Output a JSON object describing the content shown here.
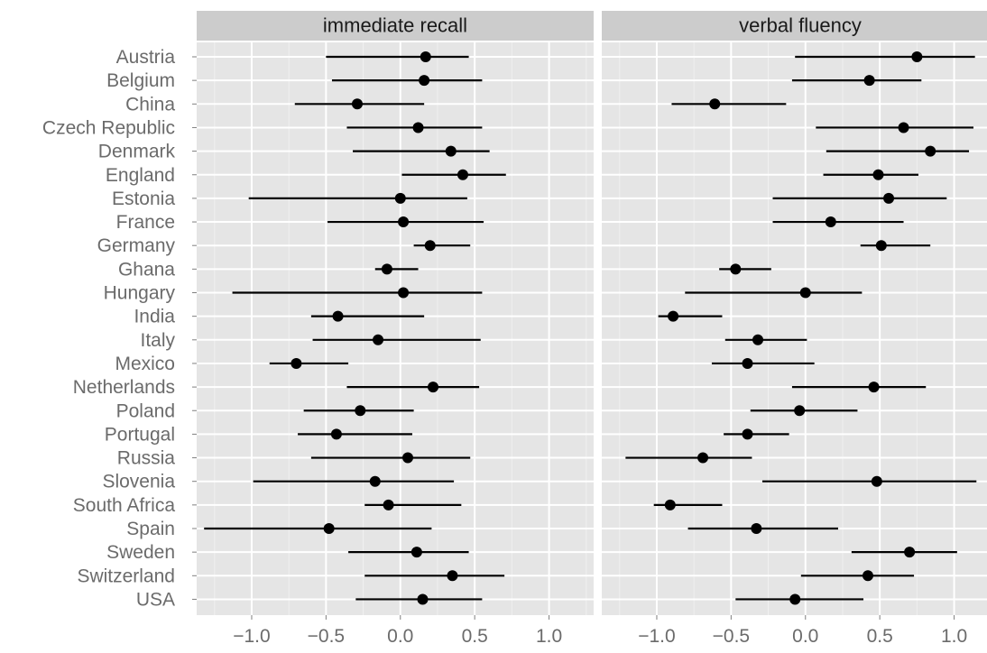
{
  "chart_data": {
    "type": "scatter",
    "subtype": "dot-and-interval (forest plot), faceted",
    "categories": [
      "Austria",
      "Belgium",
      "China",
      "Czech Republic",
      "Denmark",
      "England",
      "Estonia",
      "France",
      "Germany",
      "Ghana",
      "Hungary",
      "India",
      "Italy",
      "Mexico",
      "Netherlands",
      "Poland",
      "Portugal",
      "Russia",
      "Slovenia",
      "South Africa",
      "Spain",
      "Sweden",
      "Switzerland",
      "USA"
    ],
    "xlim": [
      -1.37,
      1.3
    ],
    "xticks": [
      -1.0,
      -0.5,
      0.0,
      0.5,
      1.0
    ],
    "xtick_labels": [
      "−1.0",
      "−0.5",
      "0.0",
      "0.5",
      "1.0"
    ],
    "grid": true,
    "legend": "none",
    "colors": {
      "panel_bg": "#e5e5e5",
      "strip_bg": "#cccccc",
      "grid_major": "#ffffff",
      "grid_minor": "#f0f0f0",
      "marks": "#000000",
      "labels": "#6b6b6b",
      "strip_text": "#1a1a1a"
    },
    "panels": [
      {
        "title": "immediate recall",
        "estimate": [
          0.17,
          0.16,
          -0.29,
          0.12,
          0.34,
          0.42,
          0.0,
          0.02,
          0.2,
          -0.09,
          0.02,
          -0.42,
          -0.15,
          -0.7,
          0.22,
          -0.27,
          -0.43,
          0.05,
          -0.17,
          -0.08,
          -0.48,
          0.11,
          0.35,
          0.15
        ],
        "lower": [
          -0.5,
          -0.46,
          -0.71,
          -0.36,
          -0.32,
          0.01,
          -1.02,
          -0.49,
          0.09,
          -0.17,
          -1.13,
          -0.6,
          -0.59,
          -0.88,
          -0.36,
          -0.65,
          -0.69,
          -0.6,
          -0.99,
          -0.24,
          -1.32,
          -0.35,
          -0.24,
          -0.3
        ],
        "upper": [
          0.46,
          0.55,
          0.16,
          0.55,
          0.6,
          0.71,
          0.45,
          0.56,
          0.47,
          0.12,
          0.55,
          0.16,
          0.54,
          -0.35,
          0.53,
          0.09,
          0.08,
          0.47,
          0.36,
          0.41,
          0.21,
          0.46,
          0.7,
          0.55
        ]
      },
      {
        "title": "verbal fluency",
        "estimate": [
          0.75,
          0.43,
          -0.61,
          0.66,
          0.84,
          0.49,
          0.56,
          0.17,
          0.51,
          -0.47,
          0.0,
          -0.89,
          -0.32,
          -0.39,
          0.46,
          -0.04,
          -0.39,
          -0.69,
          0.48,
          -0.91,
          -0.33,
          0.7,
          0.42,
          -0.07
        ],
        "lower": [
          -0.07,
          -0.09,
          -0.9,
          0.07,
          0.14,
          0.12,
          -0.22,
          -0.22,
          0.37,
          -0.58,
          -0.81,
          -0.99,
          -0.54,
          -0.63,
          -0.09,
          -0.37,
          -0.55,
          -1.21,
          -0.29,
          -1.02,
          -0.79,
          0.31,
          -0.03,
          -0.47
        ],
        "upper": [
          1.14,
          0.78,
          -0.13,
          1.13,
          1.1,
          0.76,
          0.95,
          0.66,
          0.84,
          -0.23,
          0.38,
          -0.56,
          0.01,
          0.06,
          0.81,
          0.35,
          -0.11,
          -0.36,
          1.15,
          -0.56,
          0.22,
          1.02,
          0.73,
          0.39
        ]
      }
    ]
  }
}
